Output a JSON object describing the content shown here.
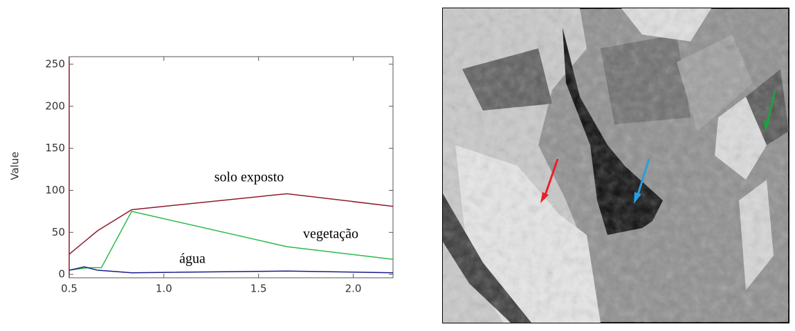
{
  "chart_data": {
    "type": "line",
    "ylabel": "Value",
    "xlim": [
      0.5,
      2.21
    ],
    "ylim": [
      -4,
      259
    ],
    "xticks": [
      0.5,
      {
        "value": 1.0,
        "label": "1.0"
      },
      1.5,
      {
        "value": 2.0,
        "label": "2.0"
      }
    ],
    "yticks": [
      0,
      50,
      100,
      150,
      200,
      250
    ],
    "series": [
      {
        "name": "solo exposto",
        "color": "#8b1a2a",
        "x": [
          0.5,
          0.65,
          0.83,
          1.65,
          2.21
        ],
        "values": [
          24,
          52,
          77,
          96,
          81
        ]
      },
      {
        "name": "vegetação",
        "color": "#2db84a",
        "x": [
          0.5,
          0.6,
          0.67,
          0.83,
          1.65,
          2.21
        ],
        "values": [
          5,
          8,
          8,
          75,
          33,
          18
        ]
      },
      {
        "name": "água",
        "color": "#1a1a8a",
        "x": [
          0.5,
          0.58,
          0.65,
          0.83,
          1.65,
          2.21
        ],
        "values": [
          5,
          9,
          5,
          2,
          4,
          2
        ]
      }
    ]
  }
}
